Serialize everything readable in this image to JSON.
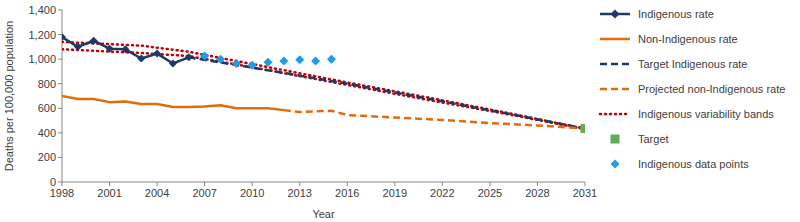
{
  "chart_data": {
    "type": "line",
    "x_label": "Year",
    "y_label": "Deaths per 100,000 population",
    "xlim": [
      1998,
      2031
    ],
    "xticks": [
      1998,
      2001,
      2004,
      2007,
      2010,
      2013,
      2016,
      2019,
      2022,
      2025,
      2028,
      2031
    ],
    "ylim": [
      0,
      1400
    ],
    "yticks": [
      0,
      200,
      400,
      600,
      800,
      {
        "value": 1000,
        "label": "1,000"
      },
      {
        "value": 1200,
        "label": "1,200"
      },
      {
        "value": 1400,
        "label": "1,400"
      }
    ],
    "grid": false,
    "legend": "right",
    "series": [
      {
        "name": "Indigenous rate",
        "type": "line",
        "color": "#203864",
        "marker": "diamond",
        "line_style": "solid",
        "x": [
          1998,
          1999,
          2000,
          2001,
          2002,
          2003,
          2004,
          2005,
          2006
        ],
        "values": [
          1180,
          1100,
          1150,
          1085,
          1080,
          1005,
          1045,
          965,
          1015
        ]
      },
      {
        "name": "Non-Indigenous rate",
        "type": "line",
        "color": "#E36C09",
        "marker": "none",
        "line_style": "solid",
        "x": [
          1998,
          1999,
          2000,
          2001,
          2002,
          2003,
          2004,
          2005,
          2006,
          2007,
          2008,
          2009,
          2010,
          2011,
          2012
        ],
        "values": [
          700,
          675,
          675,
          650,
          655,
          635,
          635,
          610,
          610,
          615,
          625,
          600,
          600,
          600,
          585
        ]
      },
      {
        "name": "Target Indigenous rate",
        "type": "line",
        "color": "#203864",
        "marker": "none",
        "line_style": "dashed",
        "x": [
          2006,
          2011,
          2016,
          2021,
          2026,
          2031
        ],
        "values": [
          1015,
          910,
          800,
          680,
          560,
          435
        ]
      },
      {
        "name": "Projected non-Indigenous rate",
        "type": "line",
        "color": "#E36C09",
        "marker": "none",
        "line_style": "dashed",
        "x": [
          2012,
          2013,
          2014,
          2015,
          2016,
          2019,
          2022,
          2025,
          2028,
          2031
        ],
        "values": [
          585,
          570,
          575,
          580,
          545,
          525,
          505,
          480,
          460,
          435
        ]
      },
      {
        "name": "Indigenous variability bands",
        "type": "line",
        "color": "#C00000",
        "marker": "none",
        "line_style": "dotted",
        "x": [
          1998,
          2003,
          2006,
          2011,
          2016,
          2021,
          2026,
          2031
        ],
        "values": [
          1140,
          1110,
          1060,
          935,
          810,
          690,
          565,
          435
        ],
        "lower": [
          1080,
          1050,
          1025,
          910,
          790,
          670,
          555,
          430
        ]
      },
      {
        "name": "Target",
        "type": "scatter",
        "color": "#5FAE57",
        "marker": "square",
        "x": [
          2031
        ],
        "values": [
          435
        ]
      },
      {
        "name": "Indigenous data points",
        "type": "scatter",
        "color": "#1E9BE9",
        "marker": "diamond",
        "x": [
          2007,
          2008,
          2009,
          2010,
          2011,
          2012,
          2013,
          2014,
          2015
        ],
        "values": [
          1025,
          1000,
          965,
          950,
          975,
          985,
          995,
          985,
          1000
        ]
      }
    ]
  }
}
